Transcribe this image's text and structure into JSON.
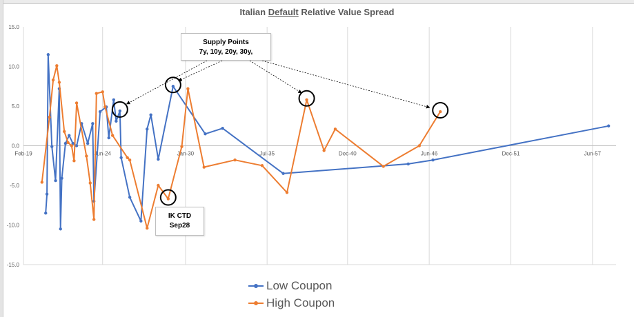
{
  "chart_data": {
    "type": "line",
    "title_prefix": "Italian ",
    "title_underlined": "Default",
    "title_suffix": " Relative Value Spread",
    "ylim": [
      -15,
      15
    ],
    "yticks": [
      "15.0",
      "10.0",
      "5.0",
      "0.0",
      "-5.0",
      "-10.0",
      "-15.0"
    ],
    "ytick_values": [
      15,
      10,
      5,
      0,
      -5,
      -10,
      -15
    ],
    "xlim": [
      "2019-02-01",
      "2059-01-01"
    ],
    "xticks": [
      "Feb-19",
      "Jun-24",
      "Jan-30",
      "Jul-35",
      "Dec-40",
      "Jun-46",
      "Dec-51",
      "Jun-57"
    ],
    "xtick_dates": [
      "2019-02-01",
      "2024-06-01",
      "2030-01-01",
      "2035-07-01",
      "2040-12-01",
      "2046-06-01",
      "2051-12-01",
      "2057-06-01"
    ],
    "grid": "vertical",
    "legend_position": "bottom",
    "series": [
      {
        "name": "Low Coupon",
        "color": "#4472C4",
        "points": [
          [
            "2020-08-01",
            -8.5
          ],
          [
            "2020-09-01",
            -6.1
          ],
          [
            "2020-10-01",
            11.5
          ],
          [
            "2021-01-01",
            -0.1
          ],
          [
            "2021-04-01",
            -4.4
          ],
          [
            "2021-07-01",
            7.2
          ],
          [
            "2021-08-01",
            -10.5
          ],
          [
            "2021-09-01",
            -4.1
          ],
          [
            "2021-12-01",
            0.3
          ],
          [
            "2022-03-01",
            1.3
          ],
          [
            "2022-06-01",
            0.3
          ],
          [
            "2022-09-01",
            0.0
          ],
          [
            "2023-01-01",
            2.8
          ],
          [
            "2023-06-01",
            0.3
          ],
          [
            "2023-10-01",
            2.8
          ],
          [
            "2023-11-01",
            -7.0
          ],
          [
            "2024-04-01",
            4.3
          ],
          [
            "2024-09-01",
            4.9
          ],
          [
            "2024-11-01",
            1.0
          ],
          [
            "2025-03-01",
            5.8
          ],
          [
            "2025-05-01",
            3.1
          ],
          [
            "2025-08-01",
            4.4
          ],
          [
            "2025-09-01",
            -1.5
          ],
          [
            "2026-04-01",
            -6.5
          ],
          [
            "2027-01-01",
            -9.5
          ],
          [
            "2027-06-01",
            2.1
          ],
          [
            "2027-09-01",
            3.9
          ],
          [
            "2028-03-01",
            -1.7
          ],
          [
            "2029-03-01",
            7.5
          ],
          [
            "2031-05-01",
            1.5
          ],
          [
            "2032-07-01",
            2.2
          ],
          [
            "2034-01-01",
            null
          ],
          [
            "2036-08-01",
            -3.5
          ],
          [
            "2045-01-01",
            -2.3
          ],
          [
            "2046-09-01",
            -1.8
          ],
          [
            "2058-07-01",
            2.5
          ]
        ]
      },
      {
        "name": "High Coupon",
        "color": "#ED7D31",
        "points": [
          [
            "2020-05-01",
            -4.6
          ],
          [
            "2020-11-01",
            3.6
          ],
          [
            "2021-02-01",
            8.3
          ],
          [
            "2021-05-01",
            10.1
          ],
          [
            "2021-07-01",
            8.0
          ],
          [
            "2021-11-01",
            1.8
          ],
          [
            "2022-02-01",
            0.4
          ],
          [
            "2022-05-01",
            0.0
          ],
          [
            "2022-07-01",
            -1.9
          ],
          [
            "2022-09-01",
            5.4
          ],
          [
            "2023-05-01",
            -1.3
          ],
          [
            "2023-08-01",
            -4.7
          ],
          [
            "2023-11-01",
            -9.3
          ],
          [
            "2024-01-01",
            6.6
          ],
          [
            "2024-06-01",
            6.8
          ],
          [
            "2024-08-01",
            4.9
          ],
          [
            "2025-02-01",
            1.3
          ],
          [
            "2026-02-01",
            -1.5
          ],
          [
            "2026-04-01",
            -1.8
          ],
          [
            "2027-06-01",
            -10.4
          ],
          [
            "2028-03-01",
            -5.0
          ],
          [
            "2028-11-01",
            -6.7
          ],
          [
            "2029-10-01",
            -0.1
          ],
          [
            "2030-03-01",
            7.2
          ],
          [
            "2031-04-01",
            -2.7
          ],
          [
            "2033-05-01",
            -1.8
          ],
          [
            "2035-03-01",
            -2.5
          ],
          [
            "2036-11-01",
            -5.9
          ],
          [
            "2038-03-01",
            5.8
          ],
          [
            "2039-05-01",
            -0.6
          ],
          [
            "2040-02-01",
            2.1
          ],
          [
            "2043-05-01",
            -2.6
          ],
          [
            "2045-10-01",
            0.0
          ],
          [
            "2047-03-01",
            4.3
          ]
        ]
      }
    ],
    "annotations": [
      {
        "lines": [
          "Supply Points",
          "7y, 10y, 20y, 30y,"
        ]
      },
      {
        "lines": [
          "IK CTD",
          "Sep28"
        ]
      }
    ]
  }
}
